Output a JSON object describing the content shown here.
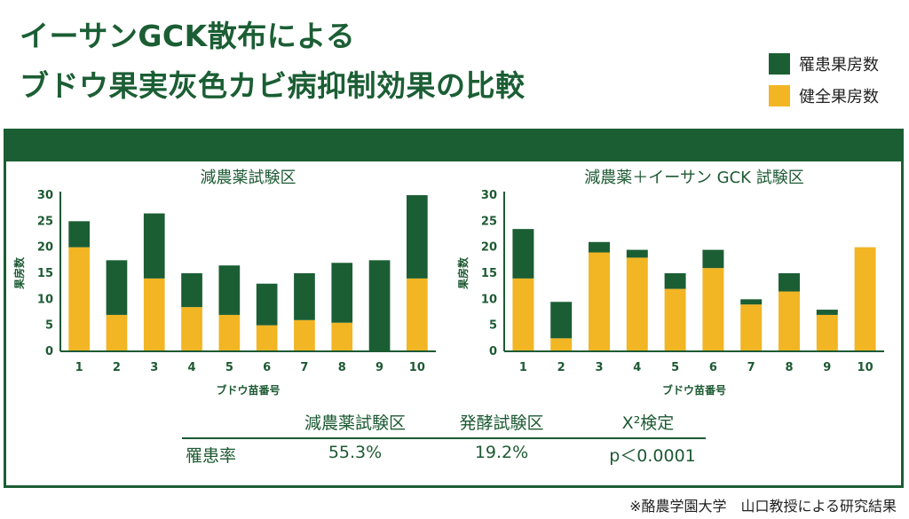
{
  "title": {
    "line1": "イーサンGCK散布による",
    "line2": "ブドウ果実灰色カビ病抑制効果の比較"
  },
  "legend": [
    {
      "label": "罹患果房数",
      "color": "#1b5e34"
    },
    {
      "label": "健全果房数",
      "color": "#f2b523"
    }
  ],
  "chart_data": [
    {
      "type": "bar",
      "stacked": true,
      "title": "減農薬試験区",
      "xlabel": "ブドウ苗番号",
      "ylabel": "果房数",
      "ylim": [
        0,
        30
      ],
      "yticks": [
        0,
        5,
        10,
        15,
        20,
        25,
        30
      ],
      "categories": [
        "1",
        "2",
        "3",
        "4",
        "5",
        "6",
        "7",
        "8",
        "9",
        "10"
      ],
      "series": [
        {
          "name": "健全果房数",
          "color": "#f2b523",
          "values": [
            20,
            7,
            14,
            8.5,
            7,
            5,
            6,
            5.5,
            0,
            14
          ]
        },
        {
          "name": "罹患果房数",
          "color": "#1b5e34",
          "values": [
            5,
            10.5,
            12.5,
            6.5,
            9.5,
            8,
            9,
            11.5,
            17.5,
            16
          ]
        }
      ]
    },
    {
      "type": "bar",
      "stacked": true,
      "title": "減農薬＋イーサン GCK 試験区",
      "xlabel": "ブドウ苗番号",
      "ylabel": "果房数",
      "ylim": [
        0,
        30
      ],
      "yticks": [
        0,
        5,
        10,
        15,
        20,
        25,
        30
      ],
      "categories": [
        "1",
        "2",
        "3",
        "4",
        "5",
        "6",
        "7",
        "8",
        "9",
        "10"
      ],
      "series": [
        {
          "name": "健全果房数",
          "color": "#f2b523",
          "values": [
            14,
            2.5,
            19,
            18,
            12,
            16,
            9,
            11.5,
            7,
            20
          ]
        },
        {
          "name": "罹患果房数",
          "color": "#1b5e34",
          "values": [
            9.5,
            7,
            2,
            1.5,
            3,
            3.5,
            1,
            3.5,
            1,
            0
          ]
        }
      ]
    }
  ],
  "comparison_table": {
    "headers": [
      "減農薬試験区",
      "発酵試験区",
      "X²検定"
    ],
    "row_label": "罹患率",
    "values": [
      "55.3%",
      "19.2%",
      "p＜0.0001"
    ]
  },
  "footnote": "※酪農学園大学　山口教授による研究結果"
}
